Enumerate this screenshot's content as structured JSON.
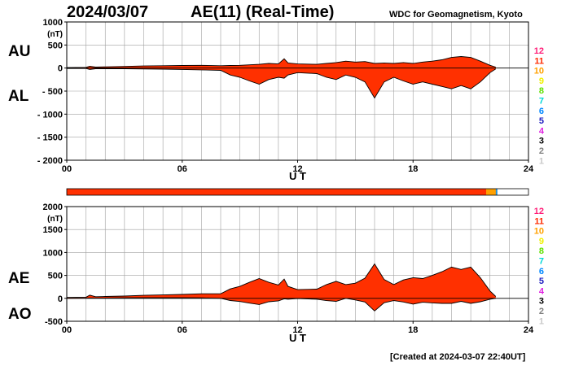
{
  "header": {
    "date": "2024/03/07",
    "title": "AE(11) (Real-Time)",
    "org": "WDC for Geomagnetism, Kyoto"
  },
  "footer": {
    "created": "[Created at 2024-03-07 22:40UT]"
  },
  "colors": {
    "fill": "#ff3000",
    "fill_recent": "#ffa000",
    "grid": "#a0a0a0",
    "qbar_recent": "#1f8fd6"
  },
  "station_legend": [
    {
      "label": "12",
      "color": "#ff1e78"
    },
    {
      "label": "11",
      "color": "#ff2a00"
    },
    {
      "label": "10",
      "color": "#ffa000"
    },
    {
      "label": "9",
      "color": "#f0f000"
    },
    {
      "label": "8",
      "color": "#60e000"
    },
    {
      "label": "7",
      "color": "#00d8d8"
    },
    {
      "label": "6",
      "color": "#0088ff"
    },
    {
      "label": "5",
      "color": "#2020c0"
    },
    {
      "label": "4",
      "color": "#e020e0"
    },
    {
      "label": "3",
      "color": "#000000"
    },
    {
      "label": "2",
      "color": "#808080"
    },
    {
      "label": "1",
      "color": "#c8c8c8"
    }
  ],
  "chart_data": [
    {
      "type": "area",
      "xlabel": "U T",
      "ylabel_unit": "(nT)",
      "xlim": [
        0,
        24
      ],
      "ylim": [
        -2000,
        1000
      ],
      "xticks": [
        "00",
        "06",
        "12",
        "18",
        "24"
      ],
      "yticks": [
        "1000",
        "500",
        "0",
        "- 500",
        "- 1000",
        "- 1500",
        "- 2000"
      ],
      "upper_label": "AU",
      "lower_label": "AL",
      "grid": true,
      "x": [
        0,
        1,
        1.2,
        1.5,
        2,
        3,
        4,
        5,
        6,
        7,
        8,
        8.5,
        9,
        9.5,
        10,
        10.5,
        11,
        11.3,
        11.5,
        12,
        13,
        13.5,
        14,
        14.5,
        15,
        15.5,
        16,
        16.5,
        17,
        17.5,
        18,
        18.5,
        19,
        19.5,
        20,
        20.5,
        21,
        21.5,
        22,
        22.3
      ],
      "series": [
        {
          "name": "AU",
          "values": [
            10,
            15,
            40,
            20,
            25,
            35,
            45,
            50,
            55,
            60,
            50,
            55,
            60,
            70,
            80,
            100,
            90,
            200,
            110,
            90,
            80,
            100,
            120,
            150,
            130,
            140,
            100,
            110,
            100,
            120,
            100,
            130,
            150,
            180,
            230,
            250,
            230,
            150,
            60,
            20
          ]
        },
        {
          "name": "AL",
          "values": [
            -10,
            -10,
            -30,
            -15,
            -15,
            -15,
            -20,
            -25,
            -30,
            -40,
            -50,
            -150,
            -200,
            -280,
            -350,
            -250,
            -200,
            -220,
            -150,
            -100,
            -120,
            -200,
            -250,
            -150,
            -200,
            -300,
            -650,
            -300,
            -200,
            -280,
            -350,
            -300,
            -350,
            -400,
            -450,
            -380,
            -450,
            -300,
            -100,
            -20
          ]
        }
      ]
    },
    {
      "type": "area",
      "xlabel": "U T",
      "ylabel_unit": "(nT)",
      "xlim": [
        0,
        24
      ],
      "ylim": [
        -500,
        2000
      ],
      "xticks": [
        "00",
        "06",
        "12",
        "18",
        "24"
      ],
      "yticks": [
        "2000",
        "1500",
        "1000",
        "500",
        "0",
        "-500"
      ],
      "upper_label": "AE",
      "lower_label": "AO",
      "grid": true,
      "x": [
        0,
        1,
        1.2,
        1.5,
        2,
        3,
        4,
        5,
        6,
        7,
        8,
        8.5,
        9,
        9.5,
        10,
        10.5,
        11,
        11.3,
        11.5,
        12,
        13,
        13.5,
        14,
        14.5,
        15,
        15.5,
        16,
        16.5,
        17,
        17.5,
        18,
        18.5,
        19,
        19.5,
        20,
        20.5,
        21,
        21.5,
        22,
        22.3
      ],
      "series": [
        {
          "name": "AE",
          "values": [
            20,
            25,
            70,
            35,
            40,
            50,
            65,
            75,
            85,
            100,
            100,
            205,
            260,
            350,
            430,
            350,
            290,
            420,
            260,
            190,
            200,
            300,
            370,
            300,
            330,
            440,
            750,
            410,
            300,
            400,
            450,
            430,
            500,
            580,
            680,
            630,
            680,
            450,
            160,
            40
          ]
        },
        {
          "name": "AO",
          "values": [
            0,
            3,
            5,
            3,
            5,
            10,
            12,
            12,
            12,
            10,
            0,
            -48,
            -70,
            -105,
            -135,
            -75,
            -55,
            -10,
            -20,
            -5,
            -20,
            -50,
            -65,
            0,
            -35,
            -80,
            -275,
            -95,
            -50,
            -80,
            -125,
            -85,
            -100,
            -110,
            -110,
            -65,
            -110,
            -75,
            -20,
            0
          ]
        }
      ]
    }
  ]
}
